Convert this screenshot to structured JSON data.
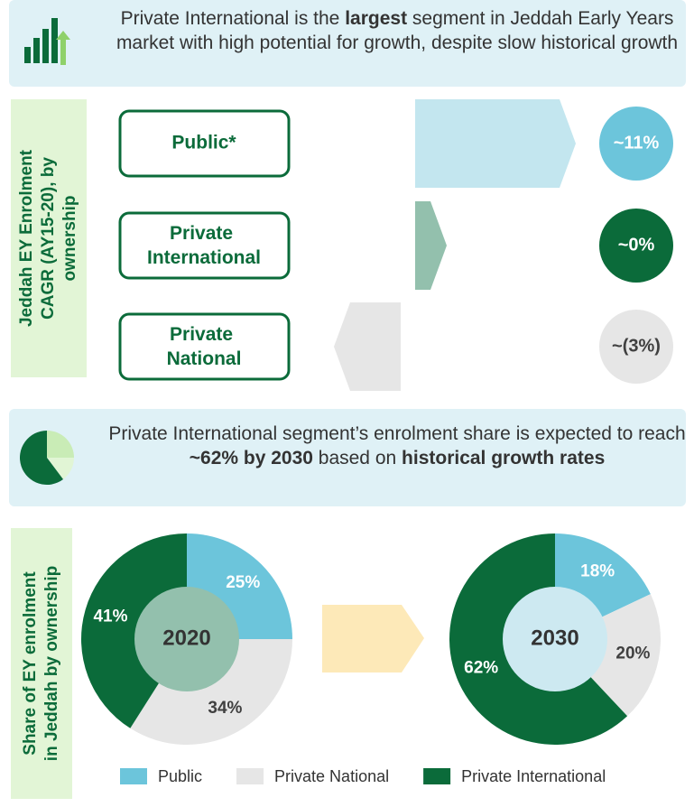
{
  "banners": [
    {
      "segments": [
        {
          "text": "Private International is the ",
          "bold": false
        },
        {
          "text": "largest",
          "bold": true
        },
        {
          "text": " segment in Jeddah Early Years market with high potential for growth, despite slow historical growth",
          "bold": false
        }
      ]
    },
    {
      "segments": [
        {
          "text": "Private International segment’s enrolment share is expected to reach ",
          "bold": false
        },
        {
          "text": "~62% by 2030",
          "bold": true
        },
        {
          "text": " based on ",
          "bold": false
        },
        {
          "text": "historical growth rates",
          "bold": true
        }
      ]
    }
  ],
  "side_labels": [
    [
      "Jeddah EY Enrolment",
      "CAGR (AY15-20), by",
      "ownership"
    ],
    [
      "Share of EY enrolment",
      "in Jeddah by ownership"
    ]
  ],
  "chart_data": [
    {
      "type": "bar",
      "categories": [
        "Public*",
        "Private International",
        "Private National"
      ],
      "values": [
        11,
        0,
        -3
      ],
      "value_labels": [
        "~11%",
        "~0%",
        "~(3%)"
      ],
      "colors": [
        "#c3e6ef",
        "#93c0ad",
        "#e6e6e6"
      ],
      "badge_colors": [
        "#6cc5db",
        "#0b6b3a",
        "#e6e6e6"
      ]
    },
    {
      "type": "donut",
      "center_label": "2020",
      "center_color": "#93c0ad",
      "categories": [
        "Public",
        "Private National",
        "Private International"
      ],
      "values": [
        25,
        34,
        41
      ],
      "value_labels": [
        "25%",
        "34%",
        "41%"
      ],
      "colors": [
        "#6cc5db",
        "#e6e6e6",
        "#0b6b3a"
      ]
    },
    {
      "type": "donut",
      "center_label": "2030",
      "center_color": "#cde9f1",
      "categories": [
        "Public",
        "Private National",
        "Private International"
      ],
      "values": [
        18,
        20,
        62
      ],
      "value_labels": [
        "18%",
        "20%",
        "62%"
      ],
      "colors": [
        "#6cc5db",
        "#e6e6e6",
        "#0b6b3a"
      ]
    }
  ]
}
